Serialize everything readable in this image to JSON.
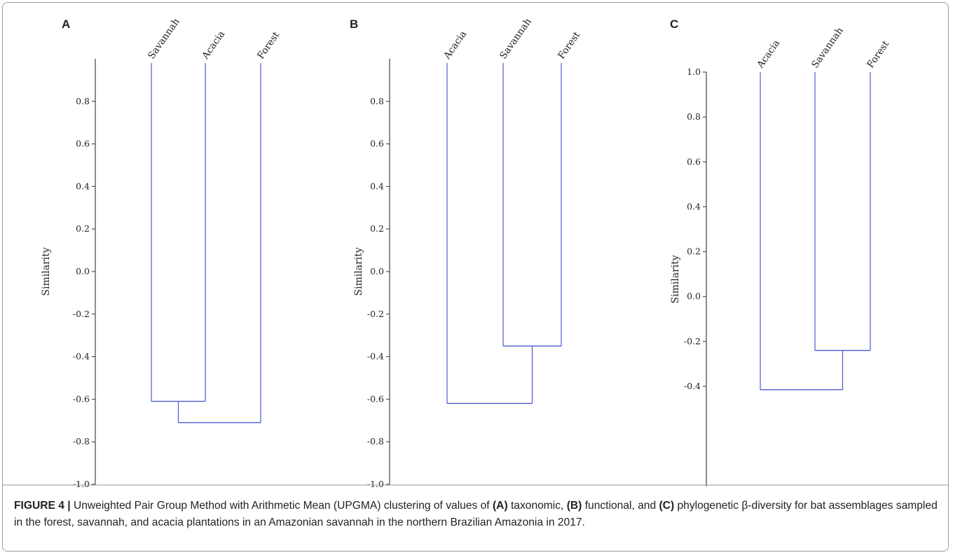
{
  "chart_data": [
    {
      "type": "dendrogram",
      "panel_label": "A",
      "ylabel": "Similarity",
      "ylim": [
        -1.0,
        0.98
      ],
      "yticks": [
        0.8,
        0.6,
        0.4,
        0.2,
        0.0,
        -0.2,
        -0.4,
        -0.6,
        -0.8,
        -1.0
      ],
      "ytick_labels": [
        "0.8",
        "0.6",
        "0.4",
        "0.2",
        "0.0",
        "-0.2",
        "-0.4",
        "-0.6",
        "-0.8",
        "-1.0"
      ],
      "leaves": [
        "Savannah",
        "Acacia",
        "Forest"
      ],
      "leaf_top": 0.98,
      "merges": [
        {
          "left": [
            "Savannah"
          ],
          "right": [
            "Acacia"
          ],
          "similarity": -0.61
        },
        {
          "left": [
            "Savannah",
            "Acacia"
          ],
          "right": [
            "Forest"
          ],
          "similarity": -0.71
        }
      ]
    },
    {
      "type": "dendrogram",
      "panel_label": "B",
      "ylabel": "Similarity",
      "ylim": [
        -1.0,
        0.98
      ],
      "yticks": [
        0.8,
        0.6,
        0.4,
        0.2,
        0.0,
        -0.2,
        -0.4,
        -0.6,
        -0.8,
        -1.0
      ],
      "ytick_labels": [
        "0.8",
        "0.6",
        "0.4",
        "0.2",
        "0.0",
        "-0.2",
        "-0.4",
        "-0.6",
        "-0.8",
        "-1.0"
      ],
      "leaves": [
        "Acacia",
        "Savannah",
        "Forest"
      ],
      "leaf_top": 0.98,
      "merges": [
        {
          "left": [
            "Savannah"
          ],
          "right": [
            "Forest"
          ],
          "similarity": -0.35
        },
        {
          "left": [
            "Acacia"
          ],
          "right": [
            "Savannah",
            "Forest"
          ],
          "similarity": -0.62
        }
      ]
    },
    {
      "type": "dendrogram",
      "panel_label": "C",
      "ylabel": "Similarity",
      "ylim": [
        -0.55,
        1.0
      ],
      "yticks": [
        1.0,
        0.8,
        0.6,
        0.4,
        0.2,
        0.0,
        -0.2,
        -0.4
      ],
      "ytick_labels": [
        "1.0",
        "0.8",
        "0.6",
        "0.4",
        "0.2",
        "0.0",
        "-0.2",
        "-0.4"
      ],
      "leaves": [
        "Acacia",
        "Savannah",
        "Forest"
      ],
      "leaf_top": 1.0,
      "merges": [
        {
          "left": [
            "Savannah"
          ],
          "right": [
            "Forest"
          ],
          "similarity": -0.24
        },
        {
          "left": [
            "Acacia"
          ],
          "right": [
            "Savannah",
            "Forest"
          ],
          "similarity": -0.415
        }
      ]
    }
  ],
  "colors": {
    "branch": "#4a5ad0",
    "axis": "#444444",
    "text": "#222222",
    "frame": "#9a9a9a"
  },
  "caption": {
    "figure_label": "FIGURE 4 |",
    "text_1": " Unweighted Pair Group Method with Arithmetic Mean (UPGMA) clustering of values of ",
    "ref_a": "(A)",
    "text_2": " taxonomic, ",
    "ref_b": "(B)",
    "text_3": " functional, and ",
    "ref_c": "(C)",
    "text_4": " phylogenetic β-diversity for bat assemblages sampled in the forest, savannah, and acacia plantations in an Amazonian savannah in the northern Brazilian Amazonia in 2017."
  }
}
